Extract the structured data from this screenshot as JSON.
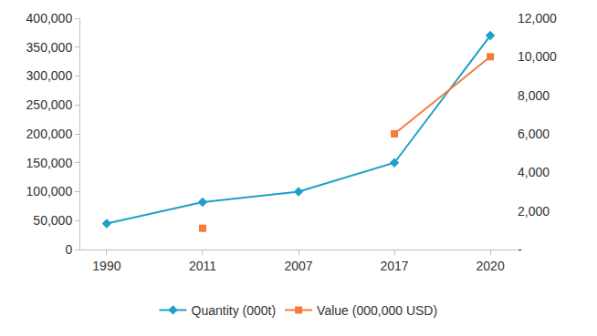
{
  "chart_data": {
    "type": "line",
    "categories": [
      "1990",
      "2011",
      "2007",
      "2017",
      "2020"
    ],
    "series": [
      {
        "name": "Quantity (000t)",
        "color": "#1f9fc9",
        "marker": "diamond",
        "line_style": "solid",
        "values": [
          45000,
          82000,
          100000,
          150000,
          370000
        ]
      },
      {
        "name": "Value (000,000 USD)",
        "color": "#f47b3c",
        "marker": "square",
        "line_style": "solid",
        "axis": "y2",
        "values": [
          null,
          1100,
          null,
          6000,
          10000
        ]
      }
    ],
    "ylim": [
      0,
      400000
    ],
    "yticks": [
      {
        "value": 0,
        "label": "0"
      },
      {
        "value": 50000,
        "label": "50,000"
      },
      {
        "value": 100000,
        "label": "100,000"
      },
      {
        "value": 150000,
        "label": "150,000"
      },
      {
        "value": 200000,
        "label": "200,000"
      },
      {
        "value": 250000,
        "label": "250,000"
      },
      {
        "value": 300000,
        "label": "300,000"
      },
      {
        "value": 350000,
        "label": "350,000"
      },
      {
        "value": 400000,
        "label": "400,000"
      }
    ],
    "y2lim": [
      0,
      12000
    ],
    "y2ticks": [
      {
        "value": 0,
        "label": "-"
      },
      {
        "value": 2000,
        "label": "2,000"
      },
      {
        "value": 4000,
        "label": "4,000"
      },
      {
        "value": 6000,
        "label": "6,000"
      },
      {
        "value": 8000,
        "label": "8,000"
      },
      {
        "value": 10000,
        "label": "10,000"
      },
      {
        "value": 12000,
        "label": "12,000"
      }
    ],
    "grid": false,
    "legend": "bottom"
  }
}
